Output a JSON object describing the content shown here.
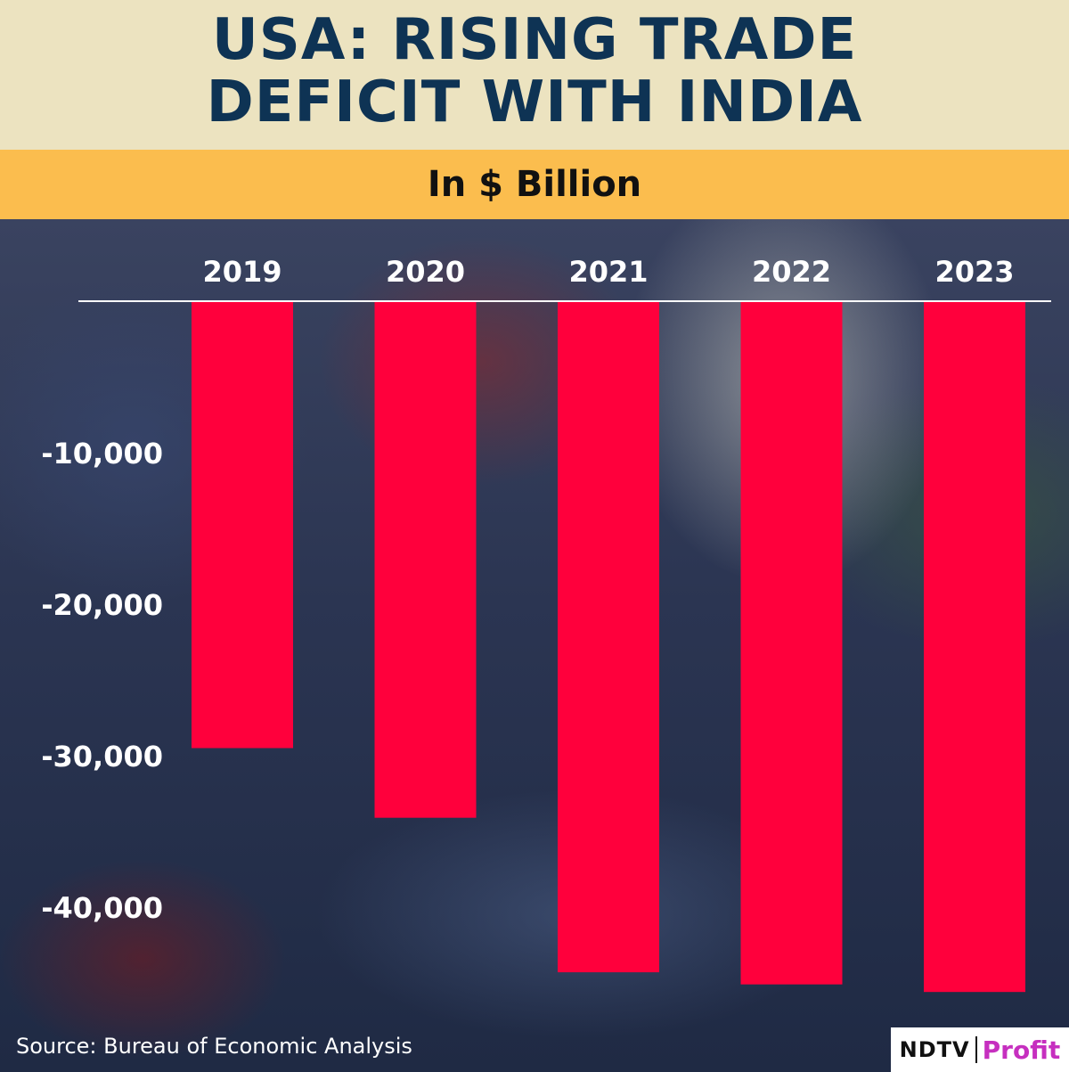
{
  "header": {
    "title_line1": "USA: RISING TRADE",
    "title_line2": "DEFICIT WITH INDIA",
    "subtitle": "In $ Billion"
  },
  "footer": {
    "source": "Source: Bureau of Economic Analysis",
    "logo_brand": "NDTV",
    "logo_product": "Profit"
  },
  "colors": {
    "bar": "#ff003c",
    "title": "#0e3354",
    "header_bg": "#ece3c0",
    "subheader_bg": "#fbbd4e",
    "logo_accent": "#c62fbf"
  },
  "chart_data": {
    "type": "bar",
    "title": "USA: RISING TRADE DEFICIT WITH INDIA",
    "subtitle": "In $ Billion",
    "categories": [
      "2019",
      "2020",
      "2021",
      "2022",
      "2023"
    ],
    "values": [
      -29500,
      -34100,
      -44300,
      -45100,
      -45600
    ],
    "ylim": [
      -50000,
      0
    ],
    "yticks": [
      -10000,
      -20000,
      -30000,
      -40000
    ],
    "ytick_labels": [
      "-10,000",
      "-20,000",
      "-30,000",
      "-40,000"
    ],
    "xaxis_position": "top",
    "grid": false,
    "legend": "none"
  }
}
